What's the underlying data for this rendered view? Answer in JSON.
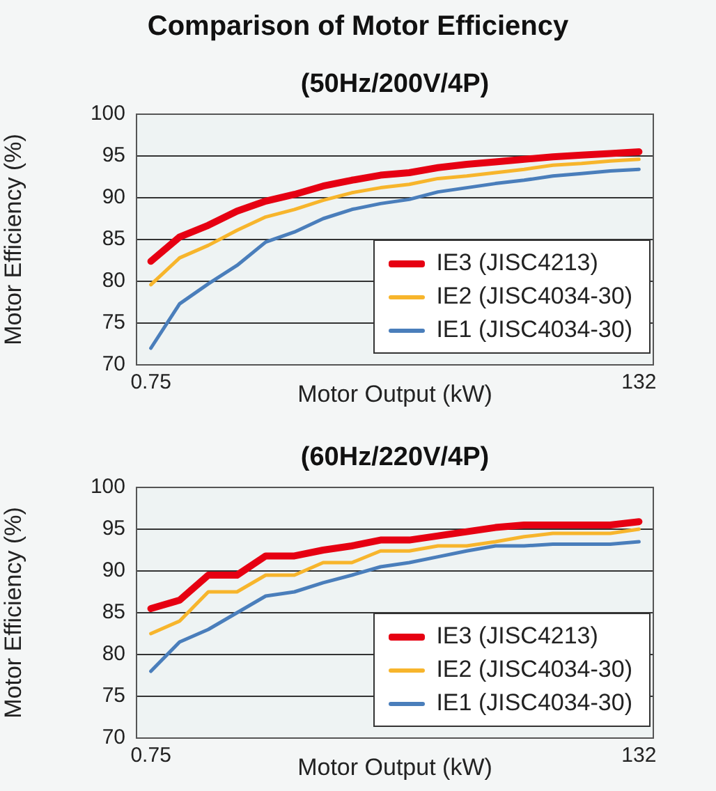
{
  "chart_data": [
    {
      "type": "line",
      "title": "Comparison of Motor Efficiency",
      "subtitle": "(50Hz/200V/4P)",
      "xlabel": "Motor Output (kW)",
      "ylabel": "Motor Efficiency (%)",
      "categories": [
        "0.75",
        null,
        null,
        null,
        null,
        null,
        null,
        null,
        null,
        null,
        null,
        null,
        null,
        null,
        null,
        null,
        null,
        "132"
      ],
      "ylim": [
        70,
        100
      ],
      "yticks": [
        70,
        75,
        80,
        85,
        90,
        95,
        100
      ],
      "grid": "y",
      "legend": "bottom right",
      "series": [
        {
          "name": "IE3 (JISC4213)",
          "color": "#e60012",
          "values": [
            82.4,
            85.3,
            86.7,
            88.4,
            89.6,
            90.4,
            91.4,
            92.1,
            92.7,
            93.0,
            93.6,
            94.0,
            94.3,
            94.6,
            94.9,
            95.1,
            95.3,
            95.5
          ]
        },
        {
          "name": "IE2 (JISC4034-30)",
          "color": "#f7b52c",
          "values": [
            79.6,
            82.8,
            84.3,
            86.1,
            87.7,
            88.6,
            89.7,
            90.6,
            91.2,
            91.6,
            92.3,
            92.6,
            93.0,
            93.4,
            93.9,
            94.1,
            94.4,
            94.6
          ]
        },
        {
          "name": "IE1 (JISC4034-30)",
          "color": "#4a7ebb",
          "values": [
            72.0,
            77.3,
            79.7,
            81.9,
            84.7,
            85.9,
            87.5,
            88.6,
            89.3,
            89.8,
            90.7,
            91.2,
            91.7,
            92.1,
            92.6,
            92.9,
            93.2,
            93.4
          ]
        }
      ]
    },
    {
      "type": "line",
      "subtitle": "(60Hz/220V/4P)",
      "xlabel": "Motor Output (kW)",
      "ylabel": "Motor Efficiency (%)",
      "categories": [
        "0.75",
        null,
        null,
        null,
        null,
        null,
        null,
        null,
        null,
        null,
        null,
        null,
        null,
        null,
        null,
        null,
        null,
        "132"
      ],
      "ylim": [
        70,
        100
      ],
      "yticks": [
        70,
        75,
        80,
        85,
        90,
        95,
        100
      ],
      "grid": "y",
      "legend": "bottom right",
      "series": [
        {
          "name": "IE3 (JISC4213)",
          "color": "#e60012",
          "values": [
            85.5,
            86.5,
            89.5,
            89.5,
            91.8,
            91.8,
            92.5,
            93.0,
            93.7,
            93.7,
            94.2,
            94.7,
            95.2,
            95.5,
            95.5,
            95.5,
            95.5,
            95.9
          ]
        },
        {
          "name": "IE2 (JISC4034-30)",
          "color": "#f7b52c",
          "values": [
            82.5,
            84.0,
            87.5,
            87.5,
            89.5,
            89.5,
            91.0,
            91.0,
            92.4,
            92.4,
            93.0,
            93.0,
            93.5,
            94.1,
            94.5,
            94.5,
            94.5,
            95.0
          ]
        },
        {
          "name": "IE1 (JISC4034-30)",
          "color": "#4a7ebb",
          "values": [
            78.0,
            81.5,
            83.0,
            85.0,
            87.0,
            87.5,
            88.6,
            89.5,
            90.5,
            91.0,
            91.7,
            92.4,
            93.0,
            93.0,
            93.2,
            93.2,
            93.2,
            93.5
          ]
        }
      ]
    }
  ]
}
